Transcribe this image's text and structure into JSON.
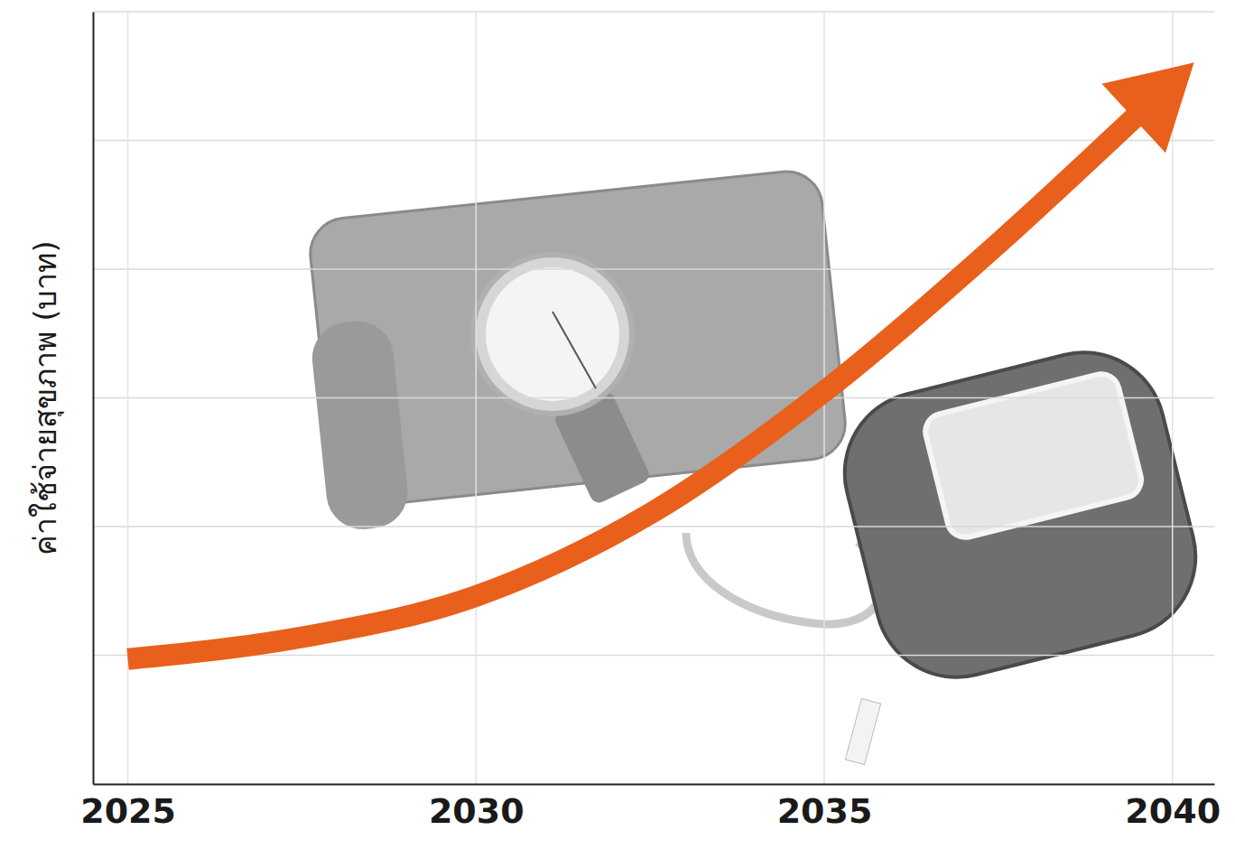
{
  "chart_data": {
    "type": "line",
    "y_label": "ค่าใช้จ่ายสุขภาพ (บาท)",
    "x": [
      2025,
      2027.5,
      2030,
      2032.5,
      2035,
      2037.5,
      2039.5
    ],
    "series": [
      {
        "values": [
          0.97,
          1.14,
          1.46,
          2.1,
          3.05,
          4.2,
          5.2
        ],
        "color": "#e8601c",
        "line_style": "solid"
      }
    ],
    "xlim": [
      2024.5,
      2040.6
    ],
    "xticks": [
      2025,
      2030,
      2035,
      2040
    ],
    "ylim": [
      0,
      6
    ],
    "yticks": [
      1,
      2,
      3,
      4,
      5,
      6
    ],
    "grid": true,
    "tick_labels": "x"
  }
}
